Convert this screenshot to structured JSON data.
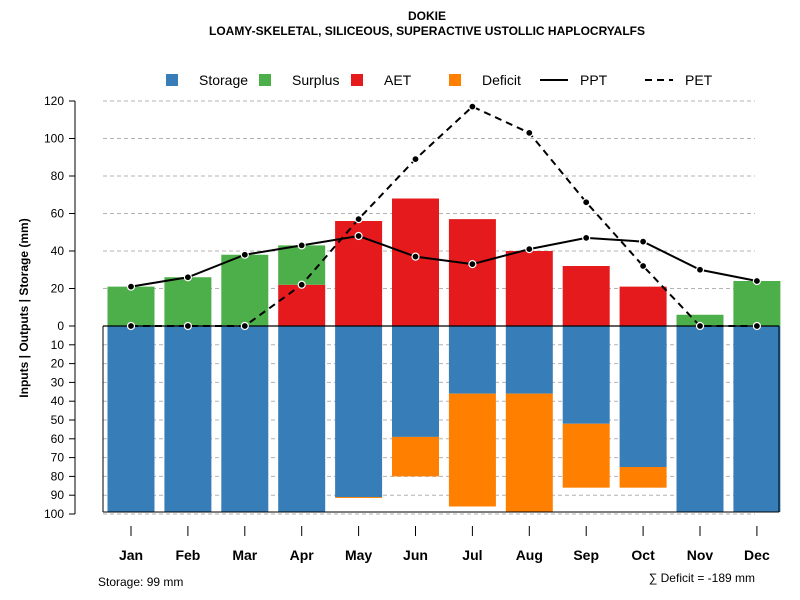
{
  "chart_data": {
    "type": "bar",
    "title": "DOKIE",
    "subtitle": "LOAMY-SKELETAL, SILICEOUS, SUPERACTIVE USTOLLIC HAPLOCRYALFS",
    "ylabel": "Inputs | Outputs | Storage    (mm)",
    "categories": [
      "Jan",
      "Feb",
      "Mar",
      "Apr",
      "May",
      "Jun",
      "Jul",
      "Aug",
      "Sep",
      "Oct",
      "Nov",
      "Dec"
    ],
    "upper_axis": {
      "ylim": [
        0,
        120
      ],
      "ticks": [
        "0",
        "20",
        "40",
        "60",
        "80",
        "100",
        "120"
      ]
    },
    "lower_axis": {
      "ylim": [
        0,
        100
      ],
      "ticks": [
        "10",
        "20",
        "30",
        "40",
        "50",
        "60",
        "70",
        "80",
        "90",
        "100"
      ],
      "direction": "down"
    },
    "series": [
      {
        "name": "Storage",
        "color": "#377EB8",
        "axis": "lower",
        "values": [
          99,
          99,
          99,
          99,
          91,
          59,
          36,
          36,
          52,
          75,
          99,
          99
        ]
      },
      {
        "name": "Deficit",
        "color": "#FF7F00",
        "axis": "lower",
        "values": [
          0,
          0,
          0,
          0,
          0.5,
          21,
          60,
          63,
          34,
          11,
          0,
          0
        ]
      },
      {
        "name": "AET",
        "color": "#E41A1C",
        "axis": "upper",
        "values": [
          0,
          0,
          0,
          22,
          56,
          68,
          57,
          40,
          32,
          21,
          0,
          0
        ]
      },
      {
        "name": "Surplus",
        "color": "#4DAF4A",
        "axis": "upper",
        "values": [
          21,
          26,
          38,
          21,
          0,
          0,
          0,
          0,
          0,
          0,
          6,
          24
        ]
      },
      {
        "name": "PPT",
        "style": "solid",
        "axis": "upper",
        "values": [
          21,
          26,
          38,
          43,
          48,
          37,
          33,
          41,
          47,
          45,
          30,
          24
        ]
      },
      {
        "name": "PET",
        "style": "dashed",
        "axis": "upper",
        "values": [
          0,
          0,
          0,
          22,
          57,
          89,
          117,
          103,
          66,
          32,
          0,
          0
        ]
      }
    ],
    "legend": {
      "position": "top",
      "entries": [
        {
          "label": "Storage",
          "kind": "box",
          "color": "#377EB8"
        },
        {
          "label": "Surplus",
          "kind": "box",
          "color": "#4DAF4A"
        },
        {
          "label": "AET",
          "kind": "box",
          "color": "#E41A1C"
        },
        {
          "label": "Deficit",
          "kind": "box",
          "color": "#FF7F00"
        },
        {
          "label": "PPT",
          "kind": "line-solid"
        },
        {
          "label": "PET",
          "kind": "line-dashed"
        }
      ]
    },
    "grid": true,
    "footer_left": "Storage: 99 mm",
    "footer_right": "∑ Deficit = -189 mm"
  }
}
